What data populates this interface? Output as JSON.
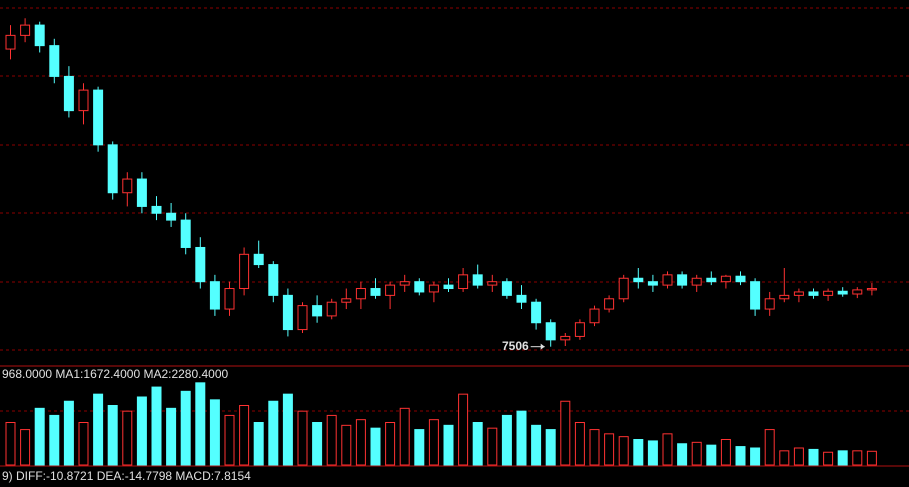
{
  "chart_data": {
    "type": "candlestick",
    "open": [
      7940,
      7960,
      7975,
      7945,
      7900,
      7850,
      7880,
      7800,
      7730,
      7750,
      7710,
      7700,
      7690,
      7650,
      7600,
      7560,
      7590,
      7640,
      7625,
      7580,
      7530,
      7565,
      7550,
      7570,
      7575,
      7590,
      7580,
      7595,
      7600,
      7585,
      7595,
      7590,
      7610,
      7595,
      7600,
      7580,
      7570,
      7540,
      7515,
      7520,
      7540,
      7560,
      7575,
      7605,
      7600,
      7595,
      7610,
      7595,
      7605,
      7600,
      7608,
      7600,
      7560,
      7575,
      7580,
      7585,
      7580,
      7586,
      7582,
      7588
    ],
    "high": [
      7975,
      7985,
      7980,
      7955,
      7915,
      7890,
      7885,
      7805,
      7760,
      7760,
      7725,
      7715,
      7700,
      7665,
      7610,
      7600,
      7650,
      7660,
      7630,
      7590,
      7570,
      7580,
      7575,
      7590,
      7600,
      7605,
      7600,
      7610,
      7605,
      7600,
      7605,
      7620,
      7625,
      7610,
      7605,
      7595,
      7575,
      7545,
      7525,
      7545,
      7565,
      7580,
      7610,
      7620,
      7610,
      7615,
      7615,
      7610,
      7615,
      7610,
      7615,
      7605,
      7585,
      7620,
      7590,
      7590,
      7590,
      7592,
      7592,
      7598
    ],
    "low": [
      7925,
      7950,
      7935,
      7890,
      7840,
      7830,
      7790,
      7720,
      7710,
      7700,
      7690,
      7680,
      7640,
      7590,
      7550,
      7550,
      7580,
      7620,
      7570,
      7520,
      7525,
      7540,
      7545,
      7560,
      7560,
      7575,
      7560,
      7585,
      7580,
      7570,
      7585,
      7585,
      7590,
      7585,
      7575,
      7560,
      7530,
      7505,
      7506,
      7515,
      7535,
      7555,
      7570,
      7590,
      7585,
      7590,
      7590,
      7585,
      7595,
      7590,
      7595,
      7550,
      7550,
      7570,
      7570,
      7575,
      7572,
      7578,
      7576,
      7580
    ],
    "close": [
      7960,
      7975,
      7945,
      7900,
      7850,
      7880,
      7800,
      7730,
      7750,
      7710,
      7700,
      7690,
      7650,
      7600,
      7560,
      7590,
      7640,
      7625,
      7580,
      7530,
      7565,
      7550,
      7570,
      7575,
      7590,
      7580,
      7595,
      7600,
      7585,
      7595,
      7590,
      7610,
      7595,
      7600,
      7580,
      7570,
      7540,
      7515,
      7520,
      7540,
      7560,
      7575,
      7605,
      7600,
      7595,
      7610,
      7595,
      7605,
      7600,
      7608,
      7600,
      7560,
      7575,
      7580,
      7585,
      7580,
      7586,
      7582,
      7588,
      7590
    ],
    "ylim": [
      7487,
      8000
    ],
    "up_color": "#ff3232",
    "down_color": "#54ffff",
    "annotation": "7506",
    "volume": {
      "values": [
        3000,
        2500,
        4000,
        3500,
        4500,
        3000,
        5000,
        4200,
        3800,
        4800,
        5500,
        4000,
        5200,
        5800,
        4600,
        3500,
        4200,
        3000,
        4500,
        5000,
        3800,
        3000,
        3500,
        2800,
        3200,
        2600,
        3000,
        4000,
        2500,
        3200,
        2800,
        5000,
        3000,
        2600,
        3500,
        3800,
        2800,
        2500,
        4500,
        3000,
        2500,
        2200,
        2000,
        1800,
        1700,
        2200,
        1500,
        1600,
        1400,
        1800,
        1300,
        1200,
        2500,
        1000,
        1200,
        1100,
        900,
        1000,
        1000,
        968
      ],
      "ylim": [
        0,
        6000
      ],
      "label": "968.0000 MA1:1672.4000 MA2:2280.4000"
    },
    "macd_label": "9) DIFF:-10.8721 DEA:-14.7798 MACD:7.8154"
  }
}
